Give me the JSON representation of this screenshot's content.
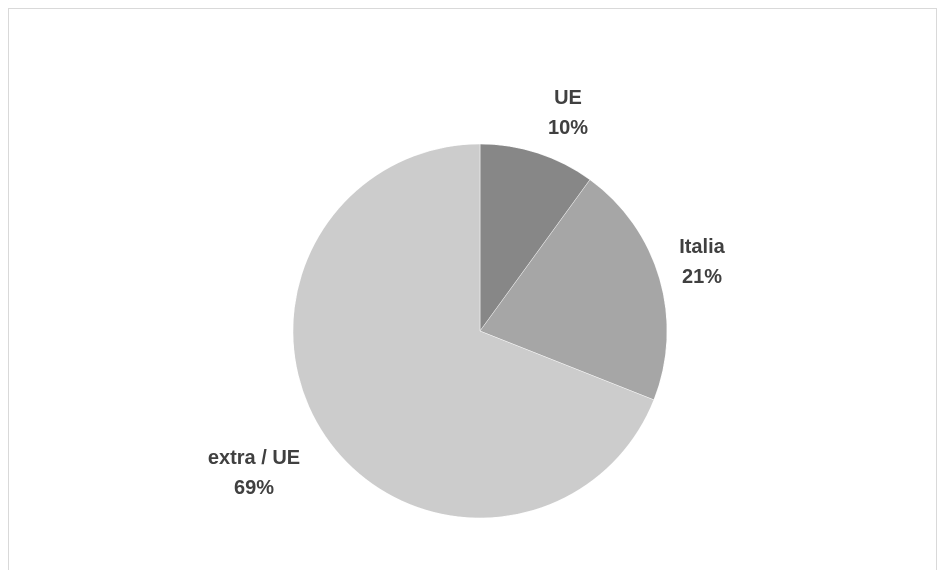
{
  "chart_data": {
    "type": "pie",
    "title": "",
    "slices": [
      {
        "label": "UE",
        "value": 10,
        "display": "10%",
        "color": "#878787"
      },
      {
        "label": "Italia",
        "value": 21,
        "display": "21%",
        "color": "#a6a6a6"
      },
      {
        "label": "extra / UE",
        "value": 69,
        "display": "69%",
        "color": "#cccccc"
      }
    ],
    "start_angle": "12 o'clock",
    "direction": "clockwise",
    "legend": "none",
    "data_labels": "outside, category name and percentage"
  }
}
